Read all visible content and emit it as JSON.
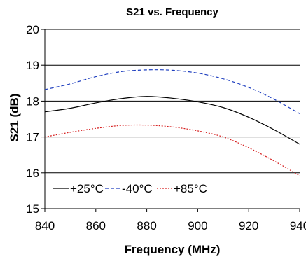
{
  "chart_data": {
    "type": "line",
    "title": "S21 vs. Frequency",
    "xlabel": "Frequency (MHz)",
    "ylabel": "S21 (dB)",
    "xlim": [
      840,
      940
    ],
    "ylim": [
      15,
      20
    ],
    "x_ticks": [
      "840",
      "860",
      "880",
      "900",
      "920",
      "940"
    ],
    "y_ticks": [
      "15",
      "16",
      "17",
      "18",
      "19",
      "20"
    ],
    "grid": "horizontal",
    "legend_position": "bottom-left inside",
    "series": [
      {
        "name": "+25°C",
        "color": "#000000",
        "dash": "solid",
        "x": [
          840,
          850,
          860,
          870,
          880,
          890,
          900,
          910,
          920,
          930,
          940
        ],
        "values": [
          17.7,
          17.8,
          17.95,
          18.07,
          18.13,
          18.08,
          17.98,
          17.82,
          17.55,
          17.2,
          16.8
        ]
      },
      {
        "name": "-40°C",
        "color": "#1f3fbf",
        "dash": "dashed",
        "x": [
          840,
          850,
          860,
          870,
          880,
          890,
          900,
          910,
          920,
          930,
          940
        ],
        "values": [
          18.32,
          18.48,
          18.68,
          18.82,
          18.87,
          18.86,
          18.78,
          18.62,
          18.38,
          18.05,
          17.65
        ]
      },
      {
        "name": "+85°C",
        "color": "#d62020",
        "dash": "dotted",
        "x": [
          840,
          850,
          860,
          870,
          880,
          890,
          900,
          910,
          920,
          930,
          940
        ],
        "values": [
          17.0,
          17.13,
          17.24,
          17.32,
          17.33,
          17.28,
          17.17,
          17.0,
          16.7,
          16.33,
          15.92
        ]
      }
    ]
  }
}
